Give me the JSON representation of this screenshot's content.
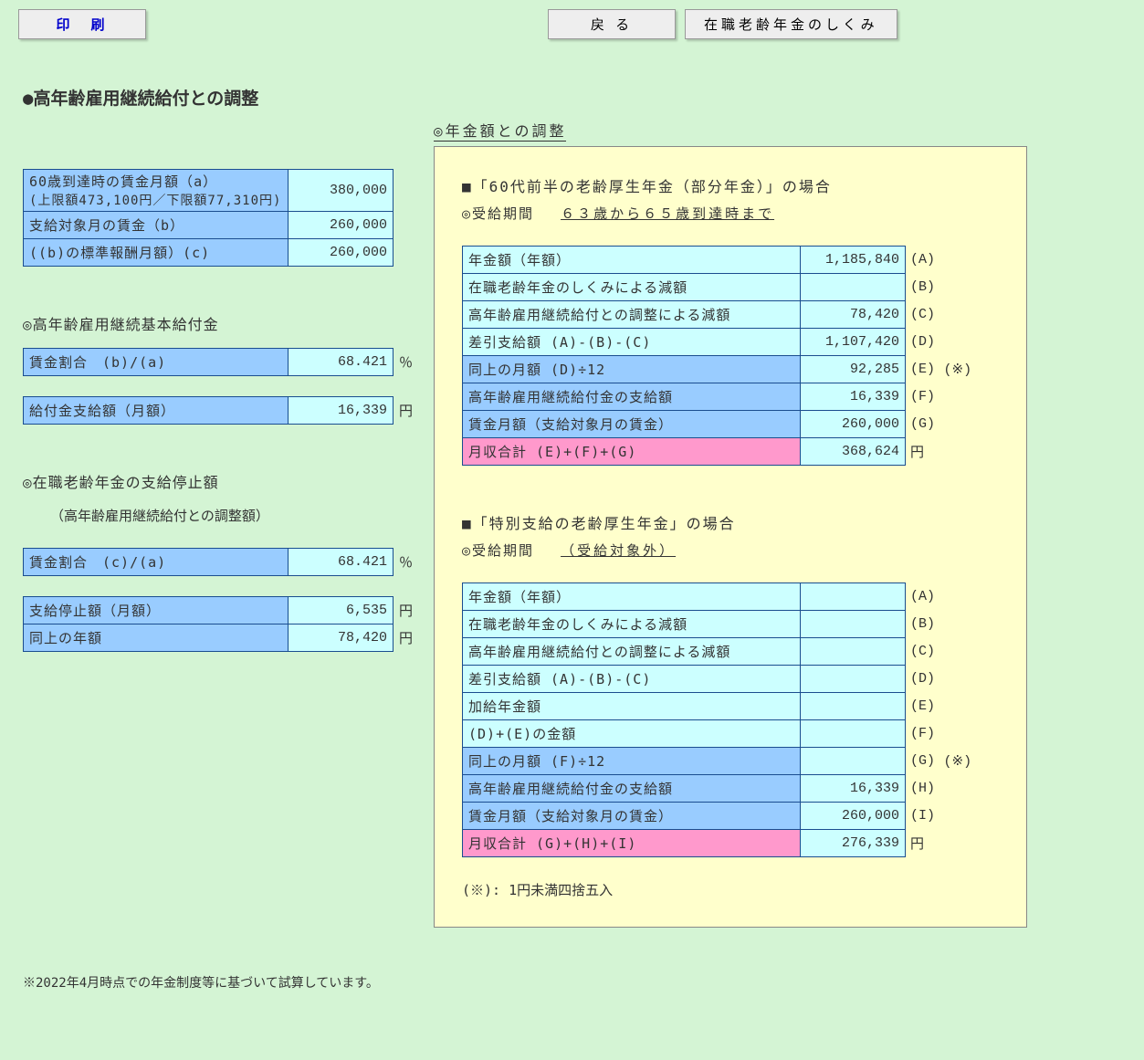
{
  "buttons": {
    "print": "印　刷",
    "back": "戻 る",
    "mechanism": "在職老齢年金のしくみ"
  },
  "main_title": "●高年齢雇用継続給付との調整",
  "right_title": "◎年金額との調整",
  "left": {
    "wage_table": {
      "row1_label": "60歳到達時の賃金月額（a）",
      "row1_sub": "(上限額473,100円／下限額77,310円)",
      "row1_value": "380,000",
      "row2_label": "支給対象月の賃金（b）",
      "row2_value": "260,000",
      "row3_label": "((b)の標準報酬月額）(c)",
      "row3_value": "260,000"
    },
    "section1_title": "◎高年齢雇用継続基本給付金",
    "ratio1": {
      "label": "賃金割合　(b)/(a)",
      "value": "68.421",
      "unit": "％"
    },
    "benefit": {
      "label": "給付金支給額（月額）",
      "value": "16,339",
      "unit": "円"
    },
    "section2_title": "◎在職老齢年金の支給停止額",
    "section2_sub": "（高年齢雇用継続給付との調整額）",
    "ratio2": {
      "label": "賃金割合　(c)/(a)",
      "value": "68.421",
      "unit": "％"
    },
    "stop": {
      "label1": "支給停止額（月額）",
      "value1": "6,535",
      "unit1": "円",
      "label2": "同上の年額",
      "value2": "78,420",
      "unit2": "円"
    }
  },
  "case1": {
    "title": "■「60代前半の老齢厚生年金（部分年金）」の場合",
    "period_label": "◎受給期間",
    "period_value": "６３歳から６５歳到達時まで",
    "rows": [
      {
        "lbl": "年金額（年額）",
        "val": "1,185,840",
        "mark": "(A)",
        "bg": "cyan"
      },
      {
        "lbl": "在職老齢年金のしくみによる減額",
        "val": "",
        "mark": "(B)",
        "bg": "cyan"
      },
      {
        "lbl": "高年齢雇用継続給付との調整による減額",
        "val": "78,420",
        "mark": "(C)",
        "bg": "cyan"
      },
      {
        "lbl": "差引支給額 (A)-(B)-(C)",
        "val": "1,107,420",
        "mark": "(D)",
        "bg": "cyan"
      },
      {
        "lbl": "同上の月額 (D)÷12",
        "val": "92,285",
        "mark": "(E)",
        "extra": "(※)",
        "bg": "blue"
      },
      {
        "lbl": "高年齢雇用継続給付金の支給額",
        "val": "16,339",
        "mark": "(F)",
        "bg": "blue"
      },
      {
        "lbl": "賃金月額（支給対象月の賃金）",
        "val": "260,000",
        "mark": "(G)",
        "bg": "blue"
      },
      {
        "lbl": "月収合計 (E)+(F)+(G)",
        "val": "368,624",
        "mark": "円",
        "bg": "pink"
      }
    ]
  },
  "case2": {
    "title": "■「特別支給の老齢厚生年金」の場合",
    "period_label": "◎受給期間",
    "period_value": "（受給対象外）",
    "rows": [
      {
        "lbl": "年金額（年額）",
        "val": "",
        "mark": "(A)",
        "bg": "cyan"
      },
      {
        "lbl": "在職老齢年金のしくみによる減額",
        "val": "",
        "mark": "(B)",
        "bg": "cyan"
      },
      {
        "lbl": "高年齢雇用継続給付との調整による減額",
        "val": "",
        "mark": "(C)",
        "bg": "cyan"
      },
      {
        "lbl": "差引支給額 (A)-(B)-(C)",
        "val": "",
        "mark": "(D)",
        "bg": "cyan"
      },
      {
        "lbl": "加給年金額",
        "val": "",
        "mark": "(E)",
        "bg": "cyan"
      },
      {
        "lbl": "(D)+(E)の金額",
        "val": "",
        "mark": "(F)",
        "bg": "cyan"
      },
      {
        "lbl": "同上の月額 (F)÷12",
        "val": "",
        "mark": "(G)",
        "extra": "(※)",
        "bg": "blue"
      },
      {
        "lbl": "高年齢雇用継続給付金の支給額",
        "val": "16,339",
        "mark": "(H)",
        "bg": "blue"
      },
      {
        "lbl": "賃金月額（支給対象月の賃金）",
        "val": "260,000",
        "mark": "(I)",
        "bg": "blue"
      },
      {
        "lbl": "月収合計 (G)+(H)+(I)",
        "val": "276,339",
        "mark": "円",
        "bg": "pink"
      }
    ]
  },
  "right_footnote": "(※): 1円未満四捨五入",
  "bottom_note": "※2022年4月時点での年金制度等に基づいて試算しています。"
}
